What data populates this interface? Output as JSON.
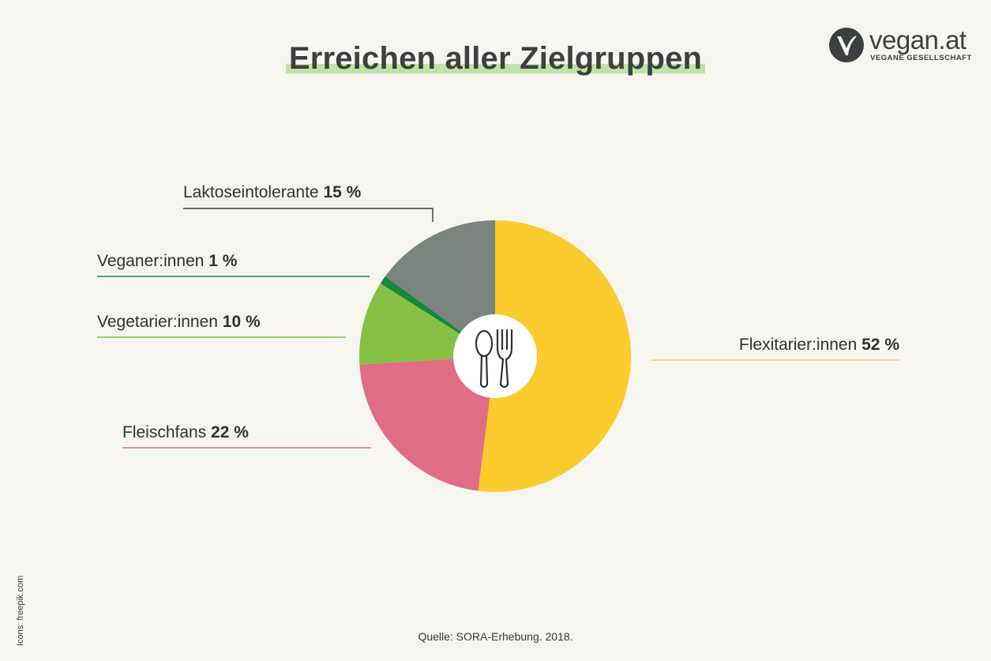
{
  "header": {
    "title": "Erreichen aller Zielgruppen"
  },
  "logo": {
    "name": "vegan.at",
    "subtitle": "VEGANE GESELLSCHAFT",
    "icon": "leaf-v-icon"
  },
  "center_icon": "cutlery-icon",
  "chart_data": {
    "type": "pie",
    "title": "Erreichen aller Zielgruppen",
    "unit": "%",
    "categories": [
      "Flexitarier:innen",
      "Fleischfans",
      "Vegetarier:innen",
      "Veganer:innen",
      "Laktoseintolerante"
    ],
    "values": [
      52,
      22,
      10,
      1,
      15
    ],
    "labels": [
      "52 %",
      "22 %",
      "10 %",
      "1 %",
      "15 %"
    ],
    "colors": [
      "#fccb2e",
      "#df6e85",
      "#86c142",
      "#148a3a",
      "#7c8480"
    ],
    "line_colors": [
      "#e8cf72",
      "#df6e85",
      "#86c142",
      "#148a3a",
      "#3a3a3a"
    ]
  },
  "footer": {
    "source": "Quelle: SORA-Erhebung. 2018.",
    "credit": "Icons: freepik.com"
  }
}
